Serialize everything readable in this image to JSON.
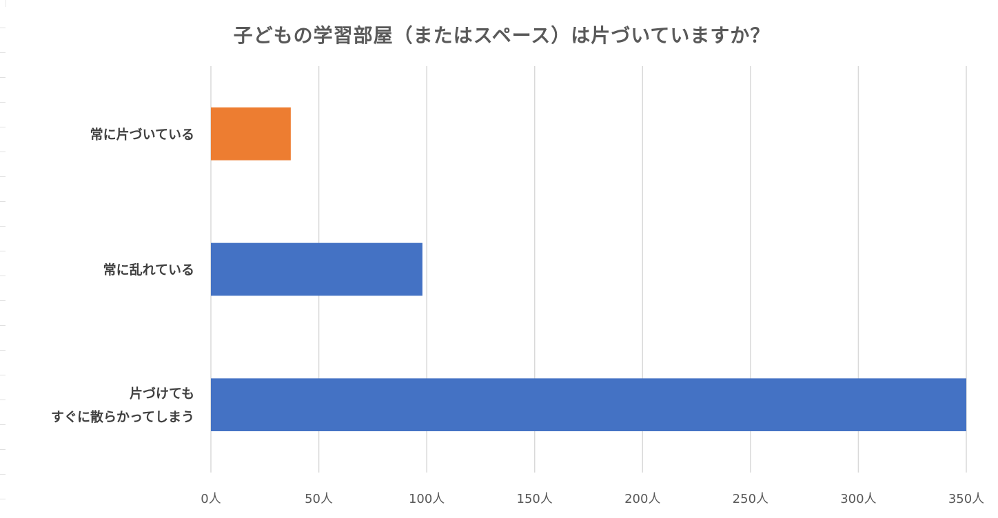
{
  "chart_data": {
    "type": "bar",
    "orientation": "horizontal",
    "title": "子どもの学習部屋（またはスペース）は片づいていますか？",
    "categories": [
      [
        "常に片づいている"
      ],
      [
        "常に乱れている"
      ],
      [
        "片づけても",
        "すぐに散らかってしまう"
      ]
    ],
    "values": [
      37,
      98,
      350
    ],
    "colors": [
      "#ED7D31",
      "#4472C4",
      "#4472C4"
    ],
    "xlim": [
      0,
      350
    ],
    "xticks": [
      0,
      50,
      100,
      150,
      200,
      250,
      300,
      350
    ],
    "tick_labels": [
      "0人",
      "50人",
      "100人",
      "150人",
      "200人",
      "250人",
      "300人",
      "350人"
    ],
    "grid": true,
    "legend": "none"
  }
}
